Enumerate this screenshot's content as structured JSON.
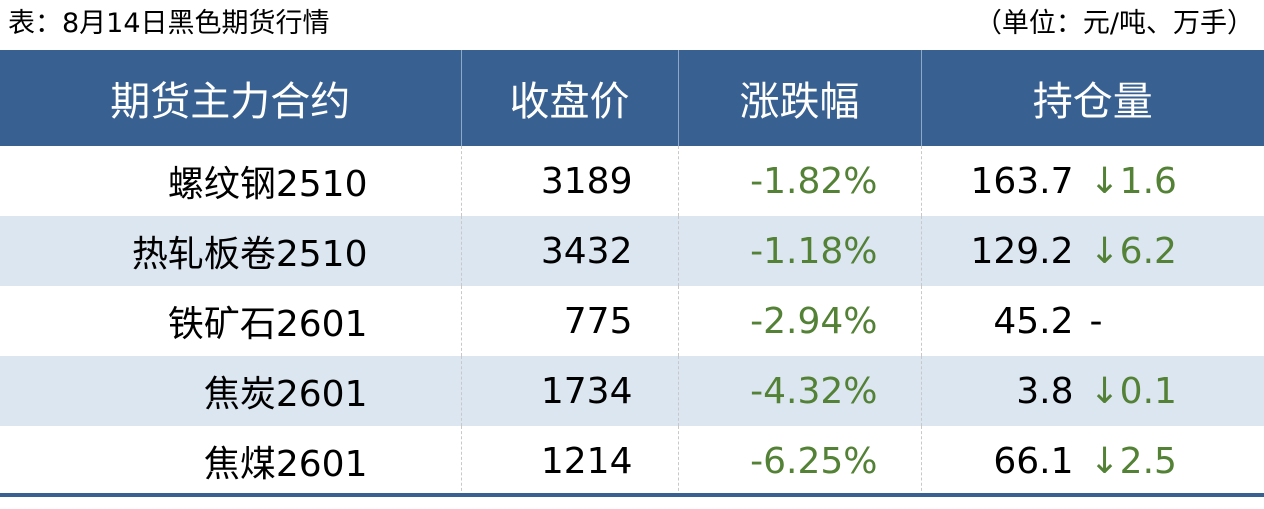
{
  "caption": {
    "title": "表：8月14日黑色期货行情",
    "unit": "（单位：元/吨、万手）"
  },
  "table": {
    "headers": [
      "期货主力合约",
      "收盘价",
      "涨跌幅",
      "持仓量"
    ],
    "rows": [
      {
        "contract": "螺纹钢2510",
        "close": "3189",
        "change": "-1.82%",
        "oi": "163.7",
        "oi_change": "↓1.6"
      },
      {
        "contract": "热轧板卷2510",
        "close": "3432",
        "change": "-1.18%",
        "oi": "129.2",
        "oi_change": "↓6.2"
      },
      {
        "contract": "铁矿石2601",
        "close": "775",
        "change": "-2.94%",
        "oi": "45.2",
        "oi_change": "-"
      },
      {
        "contract": "焦炭2601",
        "close": "1734",
        "change": "-4.32%",
        "oi": "3.8",
        "oi_change": "↓0.1"
      },
      {
        "contract": "焦煤2601",
        "close": "1214",
        "change": "-6.25%",
        "oi": "66.1",
        "oi_change": "↓2.5"
      }
    ]
  },
  "colors": {
    "header": "#386192",
    "alt_row": "#dce6f1",
    "down": "#538135"
  }
}
